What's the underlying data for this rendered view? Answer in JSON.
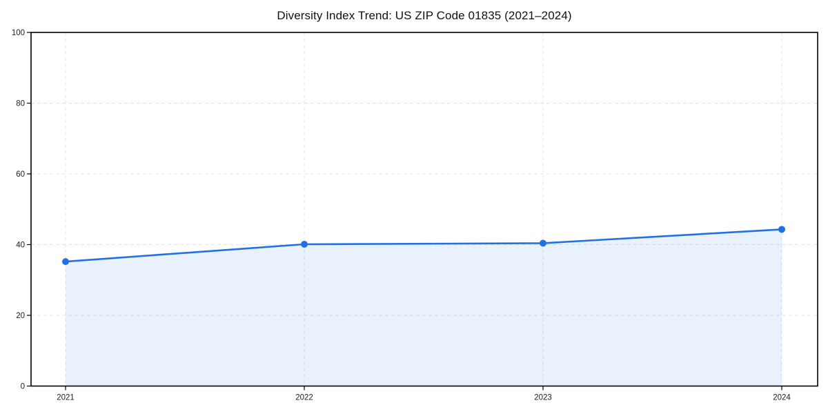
{
  "chart_data": {
    "type": "area",
    "title": "Diversity Index Trend: US ZIP Code 01835 (2021–2024)",
    "categories": [
      "2021",
      "2022",
      "2023",
      "2024"
    ],
    "series": [
      {
        "name": "Diversity Index",
        "values": [
          35.2,
          40.1,
          40.4,
          44.3
        ]
      }
    ],
    "xlabel": "",
    "ylabel": "",
    "ylim": [
      0,
      100
    ],
    "yticks": [
      0,
      20,
      40,
      60,
      80,
      100
    ],
    "grid": true,
    "grid_style": "dashed",
    "legend_position": "none",
    "line_color": "#2271e3",
    "marker": "circle",
    "marker_color": "#2271e3",
    "fill_color": "rgba(34,113,227,0.10)",
    "plot_border_color": "#000000",
    "background_color": "#ffffff"
  }
}
